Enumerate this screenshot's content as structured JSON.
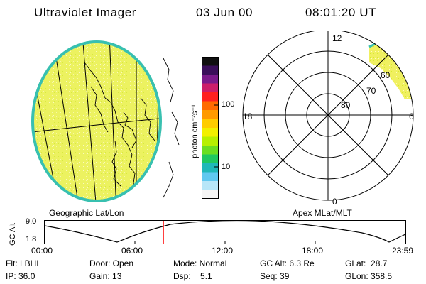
{
  "header": {
    "title": "Ultraviolet Imager",
    "date": "03 Jun 00",
    "time": "08:01:20 UT"
  },
  "colorbar": {
    "label": "photon cm⁻²s⁻¹",
    "ticks": [
      "100",
      "10"
    ],
    "scale": "log",
    "colors_top_to_bottom": [
      "#101010",
      "#3a0f5a",
      "#7a1a8a",
      "#cc1e6a",
      "#ff2020",
      "#ff6a00",
      "#ff9a00",
      "#ffcc00",
      "#f2f000",
      "#b6f000",
      "#6adf20",
      "#20c860",
      "#20b8b8",
      "#60c8f0",
      "#b8e6f8",
      "#f5f5f5"
    ]
  },
  "earth_map": {
    "label": "Geographic Lat/Lon",
    "fill_color": "#ecf260",
    "edge_color": "#38c0b0"
  },
  "polar_plot": {
    "label": "Apex MLat/MLT",
    "mlt_labels": {
      "top": "12",
      "left": "18",
      "right": "6",
      "bottom": "0"
    },
    "mlat_labels": [
      "60",
      "70",
      "80"
    ],
    "aurora_color": "#f0f060"
  },
  "altitude_plot": {
    "ylabel": "GC Alt",
    "ymax": "9.0",
    "ymin": "1.8",
    "xticks": [
      "00:00",
      "06:00",
      "12:00",
      "18:00",
      "23:59"
    ],
    "current_time_marker_color": "#ff0000"
  },
  "footer": [
    [
      "Flt: LBHL",
      "Door: Open",
      "Mode: Normal",
      "GC Alt: 6.3 Re",
      "GLat:  28.7"
    ],
    [
      "IP: 36.0",
      "Gain: 13",
      "Dsp:    5.1",
      "Seq: 39",
      "GLon: 358.5"
    ]
  ]
}
